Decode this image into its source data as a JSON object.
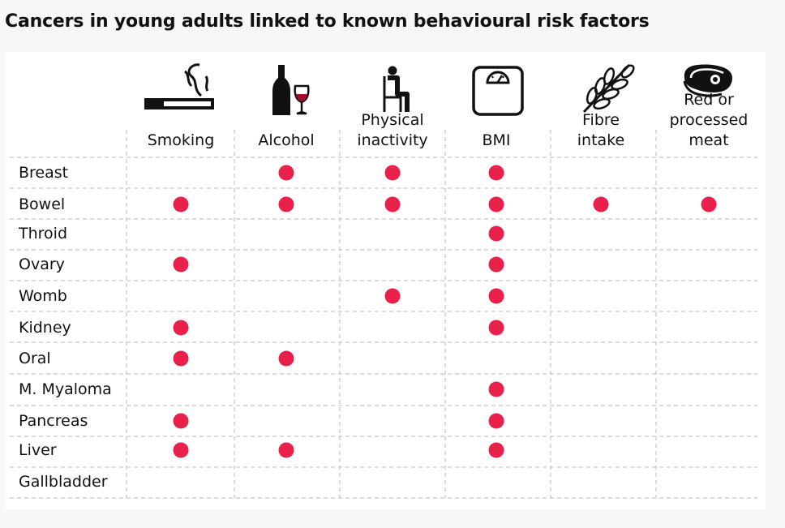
{
  "title": "Cancers in young adults linked to known behavioural risk factors",
  "colors": {
    "dot": "#e8204a",
    "grid": "#c8c8c8",
    "icon": "#111111"
  },
  "columns": [
    {
      "lines": [
        "Smoking"
      ],
      "icon": "cigarette-icon"
    },
    {
      "lines": [
        "Alcohol"
      ],
      "icon": "wine-bottle-glass-icon"
    },
    {
      "lines": [
        "Physical",
        "inactivity"
      ],
      "icon": "seated-person-icon"
    },
    {
      "lines": [
        "BMI"
      ],
      "icon": "bathroom-scale-icon"
    },
    {
      "lines": [
        "Fibre",
        "intake"
      ],
      "icon": "wheat-icon"
    },
    {
      "lines": [
        "Red or",
        "processed",
        "meat"
      ],
      "icon": "steak-icon"
    }
  ],
  "chart_data": {
    "type": "table",
    "title": "Cancers in young adults linked to known behavioural risk factors",
    "columns": [
      "Smoking",
      "Alcohol",
      "Physical inactivity",
      "BMI",
      "Fibre intake",
      "Red or processed meat"
    ],
    "rows": [
      {
        "label": "Breast",
        "values": [
          0,
          1,
          1,
          1,
          0,
          0
        ]
      },
      {
        "label": "Bowel",
        "values": [
          1,
          1,
          1,
          1,
          1,
          1
        ]
      },
      {
        "label": "Throid",
        "values": [
          0,
          0,
          0,
          1,
          0,
          0
        ]
      },
      {
        "label": "Ovary",
        "values": [
          1,
          0,
          0,
          1,
          0,
          0
        ]
      },
      {
        "label": "Womb",
        "values": [
          0,
          0,
          1,
          1,
          0,
          0
        ]
      },
      {
        "label": "Kidney",
        "values": [
          1,
          0,
          0,
          1,
          0,
          0
        ]
      },
      {
        "label": "Oral",
        "values": [
          1,
          1,
          0,
          0,
          0,
          0
        ]
      },
      {
        "label": "M. Myaloma",
        "values": [
          0,
          0,
          0,
          1,
          0,
          0
        ]
      },
      {
        "label": "Pancreas",
        "values": [
          1,
          0,
          0,
          1,
          0,
          0
        ]
      },
      {
        "label": "Liver",
        "values": [
          1,
          1,
          0,
          1,
          0,
          0
        ]
      },
      {
        "label": "Gallbladder",
        "values": [
          0,
          0,
          0,
          0,
          0,
          0
        ]
      }
    ]
  }
}
